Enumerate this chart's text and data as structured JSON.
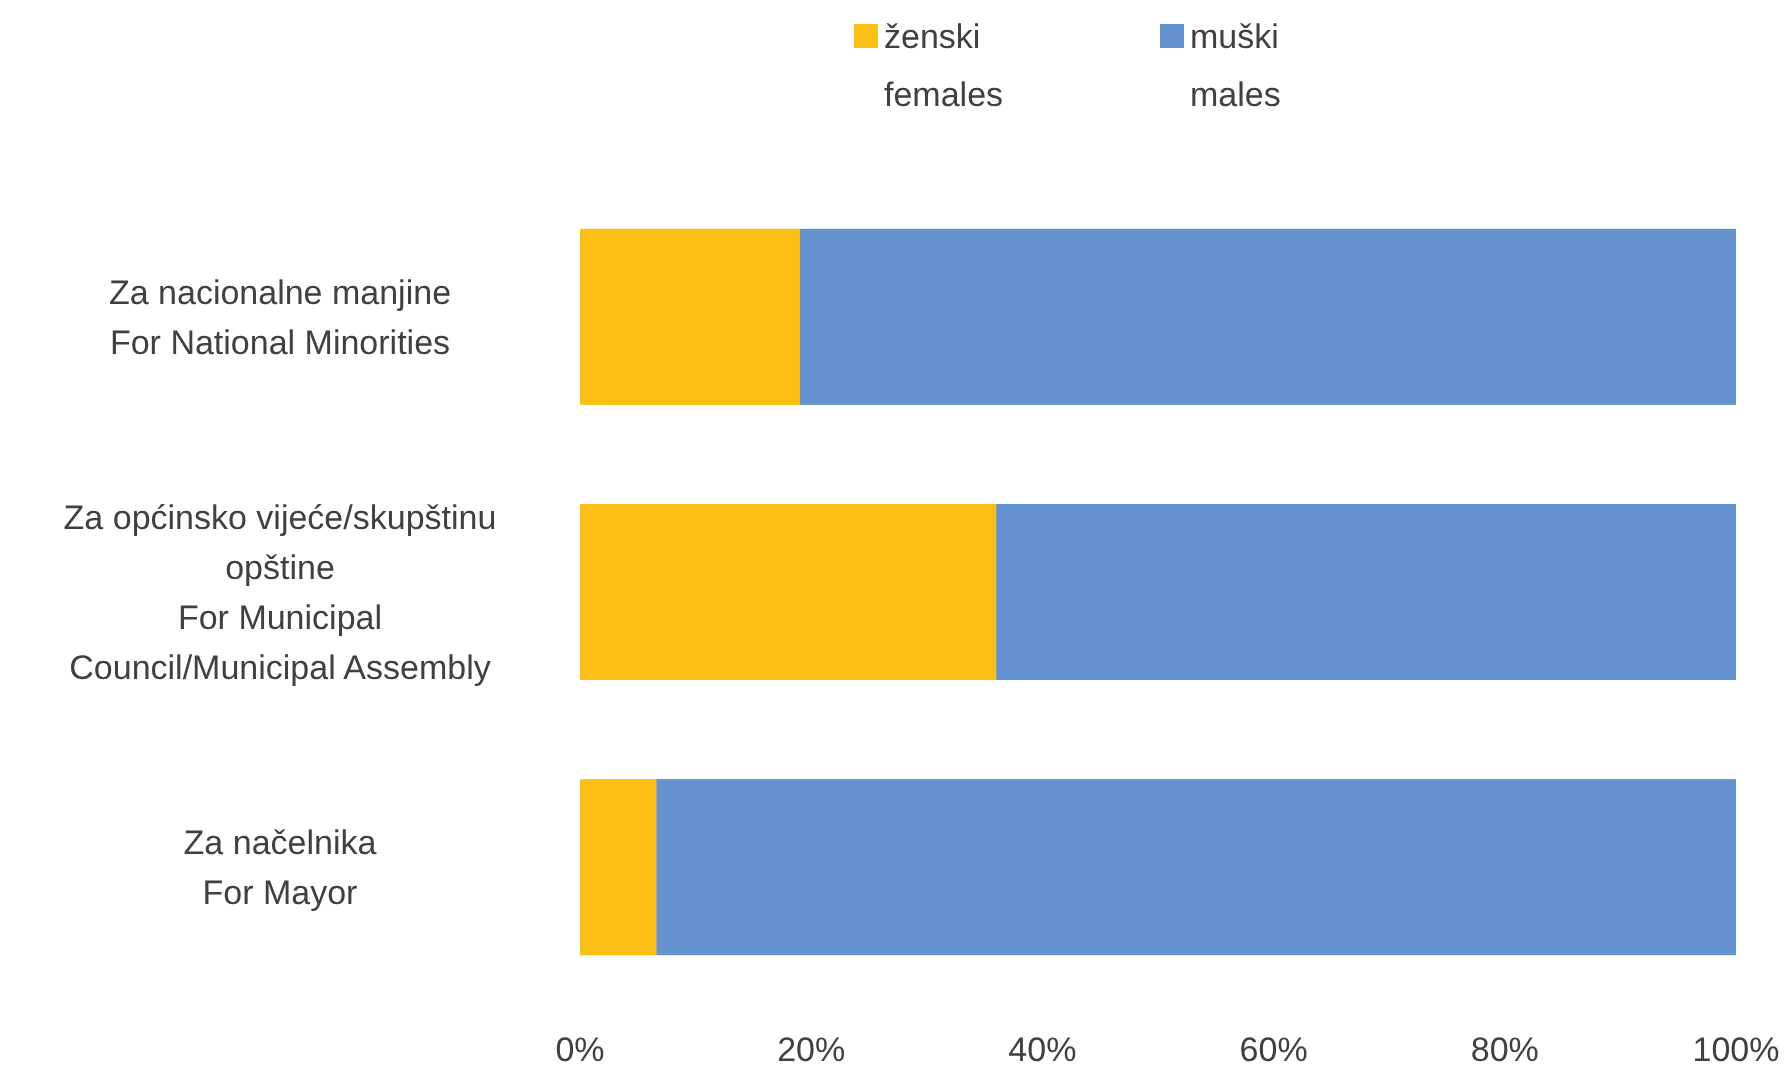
{
  "chart_data": {
    "type": "bar",
    "orientation": "horizontal",
    "stacked": true,
    "categories": [
      "Za nacionalne manjine\nFor National Minorities",
      "Za općinsko vijeće/skupštinu\nopštine\nFor Municipal\nCouncil/Municipal Assembly",
      "Za načelnika\nFor Mayor"
    ],
    "series": [
      {
        "name": "ženski\nfemales",
        "color": "#fcbf15",
        "values": [
          19,
          36,
          6.6
        ]
      },
      {
        "name": "muški\nmales",
        "color": "#6593cf",
        "values": [
          81,
          64,
          93.4
        ]
      }
    ],
    "xlim": [
      0,
      100
    ],
    "xticks": [
      {
        "value": 0,
        "label": "0%"
      },
      {
        "value": 20,
        "label": "20%"
      },
      {
        "value": 40,
        "label": "40%"
      },
      {
        "value": 60,
        "label": "60%"
      },
      {
        "value": 80,
        "label": "80%"
      },
      {
        "value": 100,
        "label": "100%"
      }
    ],
    "grid": false,
    "legend": "top"
  }
}
